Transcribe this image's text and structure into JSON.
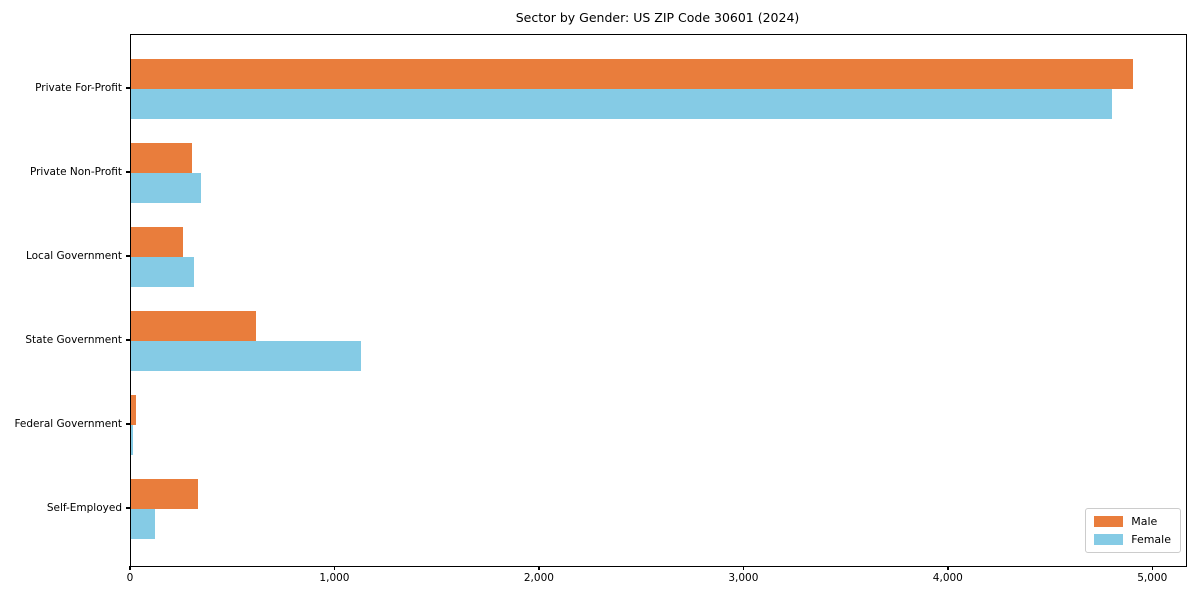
{
  "title": "Sector by Gender: US ZIP Code 30601 (2024)",
  "colors": {
    "male": "#e97d3c",
    "female": "#85cbe5",
    "axis": "#000000",
    "legend_border": "#cccccc",
    "background": "#ffffff"
  },
  "legend": {
    "entries": [
      "Male",
      "Female"
    ],
    "position": "lower right"
  },
  "chart_data": {
    "type": "bar",
    "orientation": "horizontal",
    "title": "Sector by Gender: US ZIP Code 30601 (2024)",
    "categories": [
      "Private For-Profit",
      "Private Non-Profit",
      "Local Government",
      "State Government",
      "Federal Government",
      "Self-Employed"
    ],
    "series": [
      {
        "name": "Male",
        "color": "#e97d3c",
        "values": [
          4900,
          300,
          255,
          610,
          25,
          330
        ]
      },
      {
        "name": "Female",
        "color": "#85cbe5",
        "values": [
          4800,
          340,
          310,
          1125,
          8,
          115
        ]
      }
    ],
    "xlabel": "",
    "ylabel": "",
    "xlim": [
      0,
      5160
    ],
    "xticks": [
      0,
      1000,
      2000,
      3000,
      4000,
      5000
    ],
    "xtick_labels": [
      "0",
      "1,000",
      "2,000",
      "3,000",
      "4,000",
      "5,000"
    ],
    "grid": false,
    "legend_position": "lower right"
  }
}
